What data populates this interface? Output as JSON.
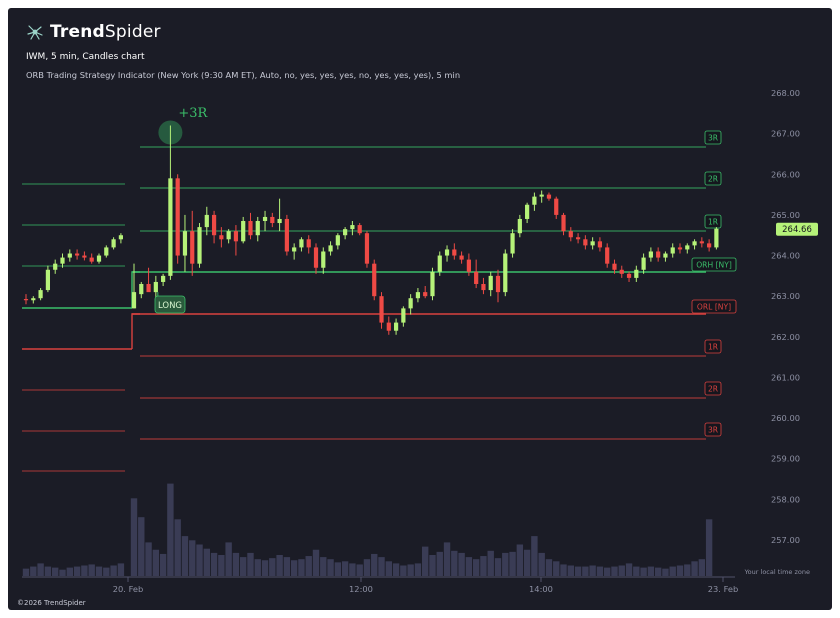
{
  "brand": {
    "name_bold": "Trend",
    "name_light": "Spider"
  },
  "header": {
    "symbol_line": "IWM, 5 min, Candles chart",
    "indicator_line": "ORB Trading Strategy Indicator (New York (9:30 AM ET), Auto, no, yes, yes, yes, no, yes, yes, yes), 5 min"
  },
  "footer": {
    "copyright": "©2026 TrendSpider",
    "timezone_note": "Your local time zone"
  },
  "colors": {
    "background": "#1b1c26",
    "up": "#b6f279",
    "down": "#ef4a45",
    "level_up": "#3bbf6a",
    "level_down": "#d9423f",
    "volume": "#3a3c55",
    "text": "#c8cad6"
  },
  "chart_data": {
    "type": "candlestick",
    "symbol": "IWM",
    "interval": "5 min",
    "ylim": [
      256.5,
      268.5
    ],
    "y_ticks": [
      "268.00",
      "267.00",
      "266.00",
      "265.00",
      "264.00",
      "263.00",
      "262.00",
      "261.00",
      "260.00",
      "259.00",
      "258.00",
      "257.00"
    ],
    "x_ticks": [
      "20. Feb",
      "12:00",
      "14:00",
      "23. Feb"
    ],
    "last_price": "264.66",
    "levels": [
      {
        "label": "3R",
        "value": 266.67,
        "side": "up"
      },
      {
        "label": "2R",
        "value": 265.65,
        "side": "up"
      },
      {
        "label": "1R",
        "value": 264.63,
        "side": "up"
      },
      {
        "label": "ORH [NY]",
        "value": 263.6,
        "side": "up"
      },
      {
        "label": "ORL [NY]",
        "value": 262.55,
        "side": "down"
      },
      {
        "label": "1R",
        "value": 261.52,
        "side": "down"
      },
      {
        "label": "2R",
        "value": 260.5,
        "side": "down"
      },
      {
        "label": "3R",
        "value": 259.45,
        "side": "down"
      }
    ],
    "previous_session_levels": [
      266.7,
      265.75,
      264.75,
      263.73,
      262.7,
      261.65,
      260.65,
      259.65,
      258.65
    ],
    "annotations": [
      {
        "text": "+3R",
        "type": "target-hit"
      },
      {
        "text": "LONG",
        "type": "entry-signal"
      }
    ],
    "candles": [
      {
        "o": 262.93,
        "h": 263.05,
        "l": 262.8,
        "c": 262.9
      },
      {
        "o": 262.9,
        "h": 263.0,
        "l": 262.82,
        "c": 262.95
      },
      {
        "o": 262.95,
        "h": 263.2,
        "l": 262.9,
        "c": 263.15
      },
      {
        "o": 263.15,
        "h": 263.75,
        "l": 263.1,
        "c": 263.65
      },
      {
        "o": 263.65,
        "h": 263.9,
        "l": 263.55,
        "c": 263.8
      },
      {
        "o": 263.8,
        "h": 264.05,
        "l": 263.7,
        "c": 263.95
      },
      {
        "o": 263.95,
        "h": 264.15,
        "l": 263.85,
        "c": 264.05
      },
      {
        "o": 264.05,
        "h": 264.15,
        "l": 263.9,
        "c": 264.0
      },
      {
        "o": 264.0,
        "h": 264.1,
        "l": 263.88,
        "c": 263.95
      },
      {
        "o": 263.95,
        "h": 264.05,
        "l": 263.8,
        "c": 263.85
      },
      {
        "o": 263.85,
        "h": 264.05,
        "l": 263.8,
        "c": 264.0
      },
      {
        "o": 264.0,
        "h": 264.25,
        "l": 263.95,
        "c": 264.2
      },
      {
        "o": 264.2,
        "h": 264.45,
        "l": 264.15,
        "c": 264.4
      },
      {
        "o": 264.4,
        "h": 264.55,
        "l": 264.3,
        "c": 264.5
      },
      {
        "o": 262.7,
        "h": 263.8,
        "l": 262.7,
        "c": 263.1
      },
      {
        "o": 263.05,
        "h": 263.35,
        "l": 262.95,
        "c": 263.3
      },
      {
        "o": 263.3,
        "h": 263.7,
        "l": 263.2,
        "c": 263.1
      },
      {
        "o": 263.1,
        "h": 263.5,
        "l": 262.95,
        "c": 263.35
      },
      {
        "o": 263.35,
        "h": 263.55,
        "l": 263.25,
        "c": 263.5
      },
      {
        "o": 263.5,
        "h": 267.2,
        "l": 263.4,
        "c": 265.9
      },
      {
        "o": 265.9,
        "h": 266.0,
        "l": 263.8,
        "c": 264.0
      },
      {
        "o": 264.0,
        "h": 265.0,
        "l": 263.6,
        "c": 264.6
      },
      {
        "o": 264.6,
        "h": 265.1,
        "l": 263.5,
        "c": 263.8
      },
      {
        "o": 263.8,
        "h": 264.8,
        "l": 263.7,
        "c": 264.7
      },
      {
        "o": 264.7,
        "h": 265.2,
        "l": 264.5,
        "c": 265.0
      },
      {
        "o": 265.0,
        "h": 265.1,
        "l": 264.3,
        "c": 264.5
      },
      {
        "o": 264.5,
        "h": 264.7,
        "l": 264.2,
        "c": 264.4
      },
      {
        "o": 264.4,
        "h": 264.65,
        "l": 264.3,
        "c": 264.6
      },
      {
        "o": 264.6,
        "h": 264.75,
        "l": 264.0,
        "c": 264.35
      },
      {
        "o": 264.35,
        "h": 264.95,
        "l": 264.3,
        "c": 264.85
      },
      {
        "o": 264.85,
        "h": 265.05,
        "l": 264.4,
        "c": 264.5
      },
      {
        "o": 264.5,
        "h": 264.95,
        "l": 264.35,
        "c": 264.85
      },
      {
        "o": 264.85,
        "h": 265.1,
        "l": 264.6,
        "c": 264.95
      },
      {
        "o": 264.95,
        "h": 265.05,
        "l": 264.7,
        "c": 264.8
      },
      {
        "o": 264.8,
        "h": 265.4,
        "l": 264.6,
        "c": 264.9
      },
      {
        "o": 264.9,
        "h": 265.0,
        "l": 264.0,
        "c": 264.1
      },
      {
        "o": 264.1,
        "h": 264.3,
        "l": 263.9,
        "c": 264.2
      },
      {
        "o": 264.2,
        "h": 264.45,
        "l": 264.1,
        "c": 264.4
      },
      {
        "o": 264.4,
        "h": 264.5,
        "l": 264.05,
        "c": 264.2
      },
      {
        "o": 264.2,
        "h": 264.3,
        "l": 263.55,
        "c": 263.7
      },
      {
        "o": 263.7,
        "h": 264.2,
        "l": 263.55,
        "c": 264.1
      },
      {
        "o": 264.1,
        "h": 264.35,
        "l": 264.0,
        "c": 264.25
      },
      {
        "o": 264.25,
        "h": 264.55,
        "l": 264.15,
        "c": 264.5
      },
      {
        "o": 264.5,
        "h": 264.7,
        "l": 264.4,
        "c": 264.65
      },
      {
        "o": 264.65,
        "h": 264.85,
        "l": 264.5,
        "c": 264.75
      },
      {
        "o": 264.75,
        "h": 264.8,
        "l": 264.5,
        "c": 264.55
      },
      {
        "o": 264.55,
        "h": 264.6,
        "l": 263.7,
        "c": 263.8
      },
      {
        "o": 263.8,
        "h": 263.9,
        "l": 262.9,
        "c": 263.0
      },
      {
        "o": 263.0,
        "h": 263.1,
        "l": 262.2,
        "c": 262.35
      },
      {
        "o": 262.35,
        "h": 262.5,
        "l": 262.05,
        "c": 262.15
      },
      {
        "o": 262.15,
        "h": 262.45,
        "l": 262.05,
        "c": 262.35
      },
      {
        "o": 262.35,
        "h": 262.75,
        "l": 262.25,
        "c": 262.7
      },
      {
        "o": 262.7,
        "h": 263.05,
        "l": 262.55,
        "c": 262.95
      },
      {
        "o": 262.95,
        "h": 263.2,
        "l": 262.85,
        "c": 263.1
      },
      {
        "o": 263.1,
        "h": 263.25,
        "l": 262.95,
        "c": 263.0
      },
      {
        "o": 263.0,
        "h": 263.7,
        "l": 262.9,
        "c": 263.6
      },
      {
        "o": 263.6,
        "h": 264.1,
        "l": 263.5,
        "c": 264.0
      },
      {
        "o": 264.0,
        "h": 264.25,
        "l": 263.85,
        "c": 264.15
      },
      {
        "o": 264.15,
        "h": 264.3,
        "l": 263.9,
        "c": 264.0
      },
      {
        "o": 264.0,
        "h": 264.1,
        "l": 263.8,
        "c": 263.9
      },
      {
        "o": 263.9,
        "h": 264.05,
        "l": 263.5,
        "c": 263.6
      },
      {
        "o": 263.6,
        "h": 263.9,
        "l": 263.2,
        "c": 263.3
      },
      {
        "o": 263.3,
        "h": 263.45,
        "l": 263.05,
        "c": 263.15
      },
      {
        "o": 263.15,
        "h": 263.6,
        "l": 263.0,
        "c": 263.5
      },
      {
        "o": 263.5,
        "h": 263.65,
        "l": 262.85,
        "c": 263.1
      },
      {
        "o": 263.1,
        "h": 264.15,
        "l": 263.0,
        "c": 264.05
      },
      {
        "o": 264.05,
        "h": 264.65,
        "l": 263.95,
        "c": 264.55
      },
      {
        "o": 264.55,
        "h": 265.0,
        "l": 264.45,
        "c": 264.9
      },
      {
        "o": 264.9,
        "h": 265.3,
        "l": 264.8,
        "c": 265.25
      },
      {
        "o": 265.25,
        "h": 265.55,
        "l": 265.1,
        "c": 265.45
      },
      {
        "o": 265.45,
        "h": 265.6,
        "l": 265.3,
        "c": 265.5
      },
      {
        "o": 265.5,
        "h": 265.55,
        "l": 265.35,
        "c": 265.4
      },
      {
        "o": 265.4,
        "h": 265.45,
        "l": 264.9,
        "c": 265.0
      },
      {
        "o": 265.0,
        "h": 265.05,
        "l": 264.5,
        "c": 264.6
      },
      {
        "o": 264.6,
        "h": 264.7,
        "l": 264.35,
        "c": 264.45
      },
      {
        "o": 264.45,
        "h": 264.55,
        "l": 264.3,
        "c": 264.4
      },
      {
        "o": 264.4,
        "h": 264.5,
        "l": 264.15,
        "c": 264.25
      },
      {
        "o": 264.25,
        "h": 264.45,
        "l": 264.15,
        "c": 264.35
      },
      {
        "o": 264.35,
        "h": 264.45,
        "l": 264.1,
        "c": 264.2
      },
      {
        "o": 264.2,
        "h": 264.3,
        "l": 263.7,
        "c": 263.8
      },
      {
        "o": 263.8,
        "h": 263.9,
        "l": 263.55,
        "c": 263.65
      },
      {
        "o": 263.65,
        "h": 263.75,
        "l": 263.45,
        "c": 263.55
      },
      {
        "o": 263.55,
        "h": 263.6,
        "l": 263.35,
        "c": 263.45
      },
      {
        "o": 263.45,
        "h": 263.75,
        "l": 263.35,
        "c": 263.65
      },
      {
        "o": 263.65,
        "h": 264.05,
        "l": 263.55,
        "c": 263.95
      },
      {
        "o": 263.95,
        "h": 264.2,
        "l": 263.85,
        "c": 264.1
      },
      {
        "o": 264.1,
        "h": 264.2,
        "l": 263.85,
        "c": 263.95
      },
      {
        "o": 263.95,
        "h": 264.1,
        "l": 263.85,
        "c": 264.05
      },
      {
        "o": 264.05,
        "h": 264.3,
        "l": 263.95,
        "c": 264.2
      },
      {
        "o": 264.2,
        "h": 264.3,
        "l": 264.05,
        "c": 264.15
      },
      {
        "o": 264.15,
        "h": 264.3,
        "l": 264.05,
        "c": 264.25
      },
      {
        "o": 264.25,
        "h": 264.4,
        "l": 264.15,
        "c": 264.35
      },
      {
        "o": 264.35,
        "h": 264.45,
        "l": 264.2,
        "c": 264.3
      },
      {
        "o": 264.3,
        "h": 264.4,
        "l": 264.1,
        "c": 264.2
      },
      {
        "o": 264.2,
        "h": 264.7,
        "l": 264.15,
        "c": 264.66
      }
    ],
    "volume": [
      0.7,
      0.9,
      1.2,
      0.9,
      0.8,
      0.6,
      0.8,
      0.9,
      1.0,
      1.1,
      0.9,
      0.8,
      1.0,
      1.2,
      7.4,
      5.6,
      3.2,
      2.5,
      2.1,
      8.8,
      5.4,
      3.8,
      3.4,
      3.0,
      2.6,
      2.2,
      2.0,
      3.2,
      2.2,
      1.8,
      2.2,
      1.6,
      1.5,
      1.7,
      2.0,
      1.8,
      1.5,
      1.6,
      1.9,
      2.5,
      1.8,
      1.6,
      1.3,
      1.4,
      1.2,
      1.1,
      1.6,
      2.1,
      1.8,
      1.4,
      1.2,
      1.0,
      1.1,
      1.2,
      2.8,
      2.0,
      2.3,
      3.2,
      2.4,
      2.2,
      1.8,
      1.6,
      1.9,
      2.4,
      1.7,
      2.2,
      2.3,
      3.0,
      2.5,
      3.8,
      2.2,
      1.6,
      1.4,
      1.1,
      1.0,
      0.9,
      0.9,
      1.0,
      0.9,
      0.8,
      0.9,
      1.0,
      1.2,
      0.9,
      0.8,
      0.9,
      0.8,
      0.7,
      0.9,
      1.0,
      1.1,
      1.4,
      1.6,
      5.4
    ]
  }
}
